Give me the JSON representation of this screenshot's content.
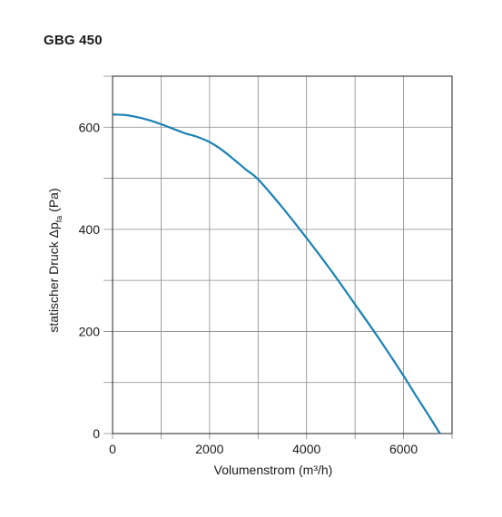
{
  "chart_data": {
    "type": "line",
    "title": "GBG 450",
    "xlabel": "Volumenstrom (m³/h)",
    "ylabel": {
      "prefix": "statischer Druck Δp",
      "subscript": "fa",
      "suffix": " (Pa)"
    },
    "xlim": [
      0,
      7000
    ],
    "ylim": [
      0,
      700
    ],
    "x_ticks": [
      0,
      2000,
      4000,
      6000
    ],
    "y_ticks": [
      0,
      200,
      400,
      600
    ],
    "grid_x": [
      0,
      1000,
      2000,
      3000,
      4000,
      5000,
      6000,
      7000
    ],
    "grid_y": [
      0,
      100,
      200,
      300,
      400,
      500,
      600,
      700
    ],
    "grid": true,
    "series": [
      {
        "color": "#1a82b5",
        "x": [
          0,
          250,
          500,
          750,
          1000,
          1250,
          1500,
          1750,
          2000,
          2250,
          2500,
          2750,
          3000,
          3500,
          4000,
          4500,
          5000,
          5500,
          6000,
          6250,
          6500,
          6750
        ],
        "y": [
          625,
          624,
          620,
          614,
          606,
          597,
          588,
          581,
          571,
          556,
          537,
          517,
          498,
          443,
          383,
          320,
          253,
          185,
          113,
          75,
          38,
          0
        ]
      }
    ]
  }
}
